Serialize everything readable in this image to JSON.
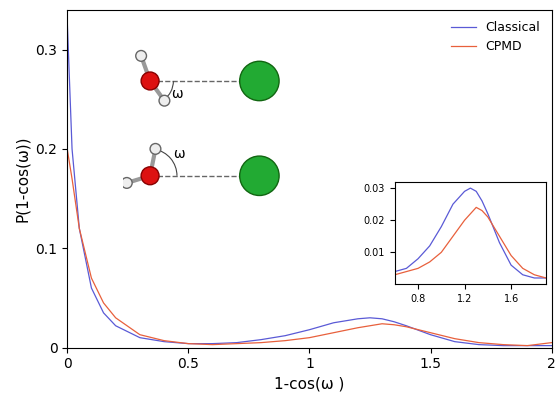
{
  "chart_data": [
    {
      "type": "line",
      "x_label": "1-cos(ω )",
      "y_label": "P(1-cos(ω))",
      "xlim": [
        0,
        2
      ],
      "ylim": [
        0,
        0.34
      ],
      "xticks": [
        0,
        0.5,
        1,
        1.5,
        2
      ],
      "yticks": [
        0,
        0.1,
        0.2,
        0.3
      ],
      "legend": "upper right",
      "annotations": [
        {
          "text": "ω"
        },
        {
          "text": "ω"
        }
      ],
      "x": [
        0,
        0.02,
        0.05,
        0.1,
        0.15,
        0.2,
        0.3,
        0.4,
        0.5,
        0.6,
        0.7,
        0.8,
        0.9,
        1.0,
        1.1,
        1.2,
        1.25,
        1.3,
        1.35,
        1.4,
        1.5,
        1.6,
        1.7,
        1.8,
        1.9,
        2.0
      ],
      "series": [
        {
          "name": "Classical",
          "color": "#5a5ad6",
          "values": [
            0.33,
            0.2,
            0.12,
            0.06,
            0.035,
            0.022,
            0.01,
            0.006,
            0.004,
            0.004,
            0.005,
            0.008,
            0.012,
            0.018,
            0.025,
            0.029,
            0.03,
            0.029,
            0.026,
            0.022,
            0.013,
            0.006,
            0.003,
            0.002,
            0.002,
            0.002
          ]
        },
        {
          "name": "CPMD",
          "color": "#e8603c",
          "values": [
            0.2,
            0.17,
            0.12,
            0.07,
            0.045,
            0.03,
            0.013,
            0.007,
            0.004,
            0.003,
            0.004,
            0.005,
            0.007,
            0.01,
            0.015,
            0.02,
            0.022,
            0.024,
            0.023,
            0.021,
            0.015,
            0.009,
            0.005,
            0.003,
            0.002,
            0.005
          ]
        }
      ]
    },
    {
      "type": "line",
      "xlim": [
        0.6,
        1.9
      ],
      "ylim": [
        0,
        0.032
      ],
      "xticks": [
        0.8,
        1.2,
        1.6
      ],
      "yticks": [
        0.01,
        0.02,
        0.03
      ],
      "x": [
        0.6,
        0.7,
        0.8,
        0.9,
        1.0,
        1.1,
        1.2,
        1.25,
        1.3,
        1.35,
        1.4,
        1.5,
        1.6,
        1.7,
        1.8,
        1.9
      ],
      "series": [
        {
          "name": "Classical",
          "color": "#5a5ad6",
          "values": [
            0.004,
            0.005,
            0.008,
            0.012,
            0.018,
            0.025,
            0.029,
            0.03,
            0.029,
            0.026,
            0.022,
            0.013,
            0.006,
            0.003,
            0.002,
            0.002
          ]
        },
        {
          "name": "CPMD",
          "color": "#e8603c",
          "values": [
            0.003,
            0.004,
            0.005,
            0.007,
            0.01,
            0.015,
            0.02,
            0.022,
            0.024,
            0.023,
            0.021,
            0.015,
            0.009,
            0.005,
            0.003,
            0.002
          ]
        }
      ]
    }
  ]
}
